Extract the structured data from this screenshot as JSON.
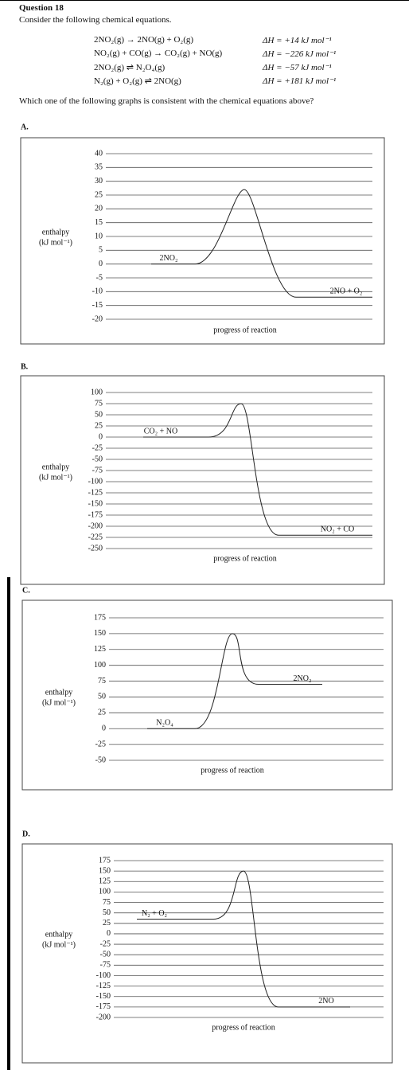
{
  "question": {
    "number": "Question 18",
    "intro": "Consider the following chemical equations.",
    "equations": [
      {
        "equation": "2NO₂(g) → 2NO(g) + O₂(g)",
        "dh": "ΔH = +14 kJ mol⁻¹"
      },
      {
        "equation": "NO₂(g) + CO(g) → CO₂(g) + NO(g)",
        "dh": "ΔH = −226 kJ mol⁻¹"
      },
      {
        "equation": "2NO₂(g) ⇌ N₂O₄(g)",
        "dh": "ΔH = −57 kJ mol⁻¹"
      },
      {
        "equation": "N₂(g) + O₂(g) ⇌ 2NO(g)",
        "dh": "ΔH = +181 kJ mol⁻¹"
      }
    ],
    "prompt": "Which one of the following graphs is consistent with the chemical equations above?"
  },
  "chart_data": [
    {
      "type": "energy-profile",
      "option": "A.",
      "ylabel": [
        "enthalpy",
        "(kJ mol⁻¹)"
      ],
      "xlabel": "progress of reaction",
      "ylim": [
        -20,
        40
      ],
      "yticks": [
        40,
        35,
        30,
        25,
        20,
        15,
        10,
        5,
        0,
        -5,
        -10,
        -15,
        -20
      ],
      "reactant": {
        "label": "2NO₂",
        "value": 0
      },
      "peak": 27,
      "product": {
        "label": "2NO + O₂",
        "value": -12
      }
    },
    {
      "type": "energy-profile",
      "option": "B.",
      "ylabel": [
        "enthalpy",
        "(kJ mol⁻¹)"
      ],
      "xlabel": "progress of reaction",
      "ylim": [
        -250,
        100
      ],
      "yticks": [
        100,
        75,
        50,
        25,
        0,
        -25,
        -50,
        -75,
        -100,
        -125,
        -150,
        -175,
        -200,
        -225,
        -250
      ],
      "reactant": {
        "label": "CO₂ + NO",
        "value": 0
      },
      "peak": 75,
      "product": {
        "label": "NO₂ + CO",
        "value": -220
      }
    },
    {
      "type": "energy-profile",
      "option": "C.",
      "ylabel": [
        "enthalpy",
        "(kJ mol⁻¹)"
      ],
      "xlabel": "progress of reaction",
      "ylim": [
        -50,
        175
      ],
      "yticks": [
        175,
        150,
        125,
        100,
        75,
        50,
        25,
        0,
        -25,
        -50
      ],
      "reactant": {
        "label": "N₂O₄",
        "value": 0
      },
      "peak": 150,
      "product": {
        "label": "2NO₂",
        "value": 70
      }
    },
    {
      "type": "energy-profile",
      "option": "D.",
      "ylabel": [
        "enthalpy",
        "(kJ mol⁻¹)"
      ],
      "xlabel": "progress of reaction",
      "ylim": [
        -200,
        175
      ],
      "yticks": [
        175,
        150,
        125,
        100,
        75,
        50,
        25,
        0,
        -25,
        -50,
        -75,
        -100,
        -125,
        -150,
        -175,
        -200
      ],
      "reactant": {
        "label": "N₂ + O₂",
        "value": 35
      },
      "peak": 150,
      "product": {
        "label": "2NO",
        "value": -175
      }
    }
  ]
}
